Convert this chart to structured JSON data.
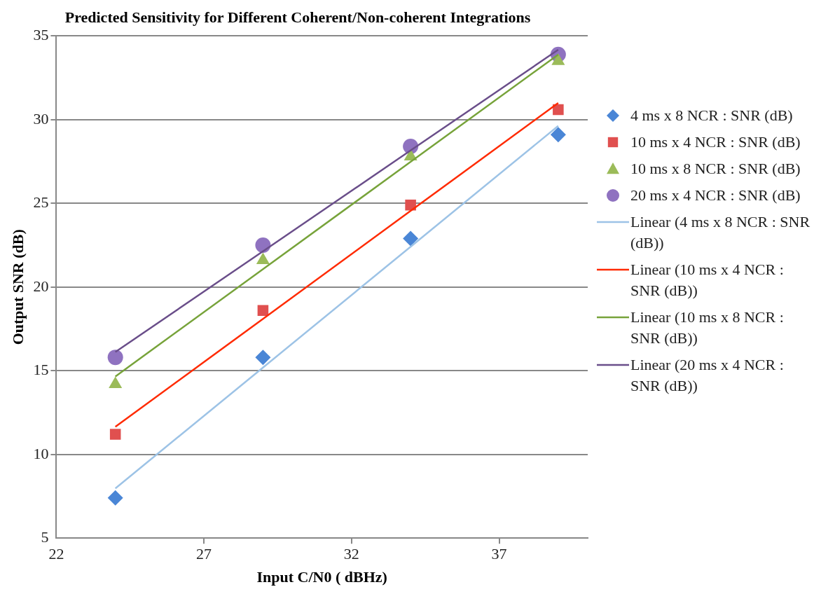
{
  "chart_data": {
    "type": "scatter",
    "title": "Predicted Sensitivity for Different Coherent/Non-coherent Integrations",
    "xlabel": "Input C/N0 ( dBHz)",
    "ylabel": "Output SNR (dB)",
    "x": [
      24,
      29,
      34,
      39
    ],
    "series": [
      {
        "name": "4 ms x 8 NCR : SNR (dB)",
        "marker": "diamond",
        "color": "#4a86d6",
        "values": [
          7.4,
          15.8,
          22.9,
          29.1
        ]
      },
      {
        "name": "10 ms x 4 NCR :  SNR (dB)",
        "marker": "square",
        "color": "#e0504f",
        "values": [
          11.2,
          18.6,
          24.9,
          30.6
        ]
      },
      {
        "name": "10 ms x 8 NCR :  SNR (dB)",
        "marker": "triangle",
        "color": "#9bbb59",
        "values": [
          14.2,
          21.6,
          27.8,
          33.5
        ]
      },
      {
        "name": "20 ms x 4 NCR :  SNR (dB)",
        "marker": "circle",
        "color": "#8f72c0",
        "values": [
          15.8,
          22.5,
          28.4,
          33.9
        ]
      },
      {
        "name": "Linear (4 ms x 8 NCR : SNR (dB))",
        "type": "line",
        "marker": "none",
        "color": "#9dc3e6",
        "values": [
          7.97,
          15.19,
          22.41,
          29.63
        ]
      },
      {
        "name": "Linear (10 ms x 4 NCR :  SNR (dB))",
        "type": "line",
        "marker": "none",
        "color": "#ff2a00",
        "values": [
          11.65,
          18.1,
          24.55,
          31.0
        ]
      },
      {
        "name": "Linear (10 ms x 8 NCR :  SNR (dB))",
        "type": "line",
        "marker": "none",
        "color": "#77a33a",
        "values": [
          14.66,
          21.07,
          27.48,
          33.89
        ]
      },
      {
        "name": "Linear (20 ms x 4 NCR :  SNR (dB))",
        "type": "line",
        "marker": "none",
        "color": "#6a4e8a",
        "values": [
          16.12,
          22.14,
          28.16,
          34.18
        ]
      }
    ],
    "xlim": [
      22,
      40
    ],
    "xticks": [
      22,
      27,
      32,
      37
    ],
    "ylim": [
      5,
      35
    ],
    "yticks": [
      5,
      10,
      15,
      20,
      25,
      30,
      35
    ],
    "grid": "y",
    "legend": "right"
  }
}
